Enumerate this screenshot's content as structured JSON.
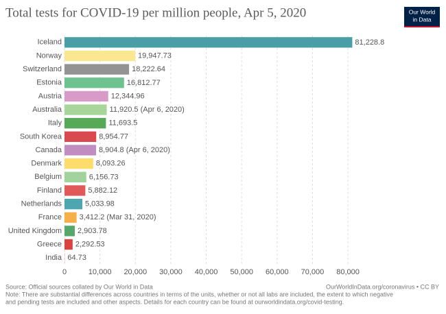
{
  "chart_data": {
    "type": "hbar",
    "title": "Total tests for COVID-19 per million people, Apr 5, 2020",
    "logo": [
      "Our World",
      "in Data"
    ],
    "categories": [
      "Iceland",
      "Norway",
      "Switzerland",
      "Estonia",
      "Austria",
      "Australia",
      "Italy",
      "South Korea",
      "Canada",
      "Denmark",
      "Belgium",
      "Finland",
      "Netherlands",
      "France",
      "United Kingdom",
      "Greece",
      "India"
    ],
    "values": [
      81228.8,
      19947.73,
      18222.64,
      16812.77,
      12344.96,
      11920.5,
      11693.5,
      8954.77,
      8904.8,
      8093.26,
      6156.73,
      5882.12,
      5033.98,
      3412.2,
      2903.78,
      2292.53,
      64.73
    ],
    "value_labels": [
      "81,228.8",
      "19,947.73",
      "18,222.64",
      "16,812.77",
      "12,344.96",
      "11,920.5",
      "11,693.5",
      "8,954.77",
      "8,904.8",
      "8,093.26",
      "6,156.73",
      "5,882.12",
      "5,033.98",
      "3,412.2",
      "2,903.78",
      "2,292.53",
      "64.73"
    ],
    "value_notes": [
      null,
      null,
      null,
      null,
      null,
      "(Apr 6, 2020)",
      null,
      null,
      "(Apr 6, 2020)",
      null,
      null,
      null,
      null,
      "(Mar 31, 2020)",
      null,
      null,
      null
    ],
    "colors": [
      "#4a9fa6",
      "#fbe78f",
      "#939393",
      "#6ec28f",
      "#d89bc7",
      "#a8d59a",
      "#57a857",
      "#d94a4e",
      "#c18cc0",
      "#fcdc6b",
      "#a3d39c",
      "#e05a5a",
      "#4ea6b0",
      "#f6b04a",
      "#56a86a",
      "#d9453e",
      "#c990c4"
    ],
    "xlim": [
      0,
      82000
    ],
    "xticks": [
      0,
      {
        "value": 10000,
        "label": "10,000"
      },
      {
        "value": 20000,
        "label": "20,000"
      },
      {
        "value": 30000,
        "label": "30,000"
      },
      {
        "value": 40000,
        "label": "40,000"
      },
      {
        "value": 50000,
        "label": "50,000"
      },
      {
        "value": 60000,
        "label": "60,000"
      },
      {
        "value": 70000,
        "label": "70,000"
      },
      {
        "value": 80000,
        "label": "80,000"
      }
    ],
    "grid": true,
    "source": "Source: Official sources collated by Our World in Data",
    "credit": "OurWorldInData.org/coronavirus • CC BY",
    "note": [
      "Note: There are substantial differences across countries in terms of the units, whether or not all labs are included, the extent to which negative",
      "and pending tests are included and other aspects. Details for each country can be found at ourworldindata.org/covid-testing."
    ]
  }
}
